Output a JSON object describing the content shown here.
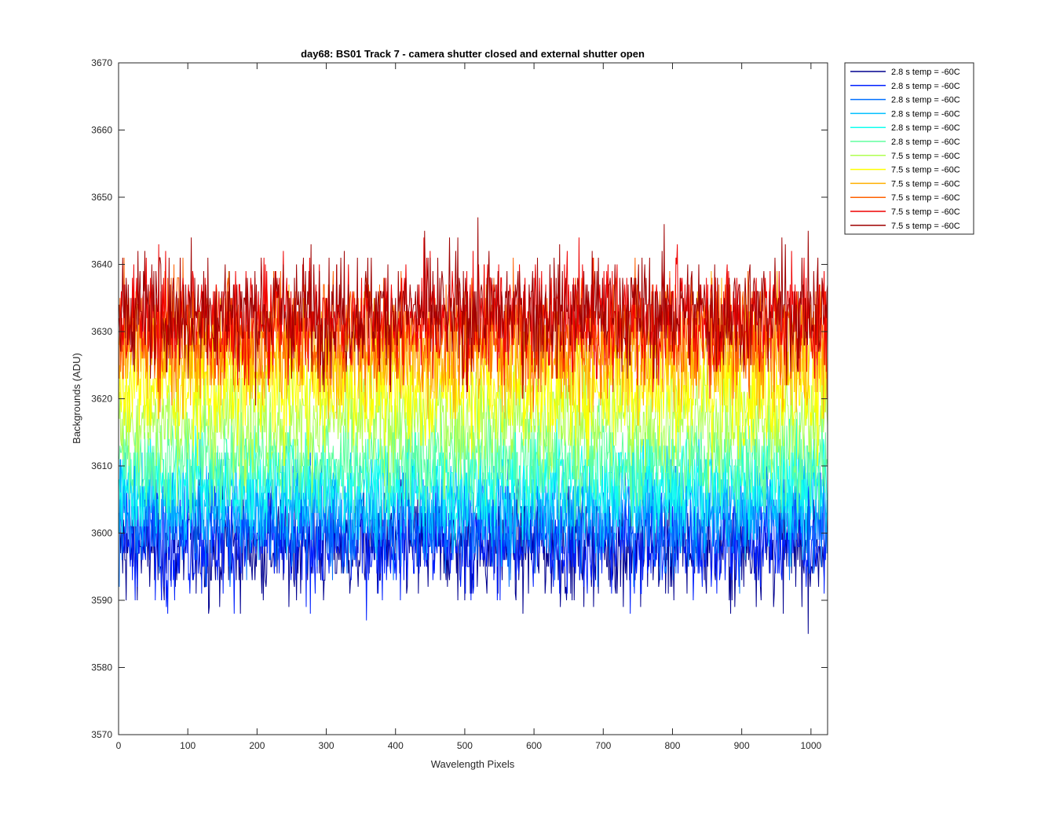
{
  "chart_data": {
    "type": "line",
    "title": "day68: BS01  Track 7 - camera shutter closed and external shutter open",
    "xlabel": "Wavelength Pixels",
    "ylabel": "Backgrounds (ADU)",
    "xlim": [
      0,
      1024
    ],
    "ylim": [
      3570,
      3670
    ],
    "xticks": [
      "0",
      "100",
      "200",
      "300",
      "400",
      "500",
      "600",
      "700",
      "800",
      "900",
      "1000"
    ],
    "yticks": [
      "3570",
      "3580",
      "3590",
      "3600",
      "3610",
      "3620",
      "3630",
      "3640",
      "3650",
      "3660",
      "3670"
    ],
    "grid": false,
    "legend_position": "outside-top-right",
    "x_range": [
      1,
      1024
    ],
    "series": [
      {
        "name": "2.8 s temp = -60C",
        "color": "#00008f",
        "mean": 3598,
        "spread": 6.5
      },
      {
        "name": "2.8 s temp = -60C",
        "color": "#0020ff",
        "mean": 3599,
        "spread": 6.5
      },
      {
        "name": "2.8 s temp = -60C",
        "color": "#0070ff",
        "mean": 3602,
        "spread": 6
      },
      {
        "name": "2.8 s temp = -60C",
        "color": "#00bfff",
        "mean": 3605,
        "spread": 6
      },
      {
        "name": "2.8 s temp = -60C",
        "color": "#10ffef",
        "mean": 3608,
        "spread": 6
      },
      {
        "name": "2.8 s temp = -60C",
        "color": "#60ff9f",
        "mean": 3611,
        "spread": 6
      },
      {
        "name": "7.5 s temp = -60C",
        "color": "#afff50",
        "mean": 3617,
        "spread": 6.5
      },
      {
        "name": "7.5 s temp = -60C",
        "color": "#ffff00",
        "mean": 3622,
        "spread": 7
      },
      {
        "name": "7.5 s temp = -60C",
        "color": "#ffaf00",
        "mean": 3627,
        "spread": 7
      },
      {
        "name": "7.5 s temp = -60C",
        "color": "#ff6000",
        "mean": 3630,
        "spread": 7
      },
      {
        "name": "7.5 s temp = -60C",
        "color": "#ef0000",
        "mean": 3632,
        "spread": 7
      },
      {
        "name": "7.5 s temp = -60C",
        "color": "#9f0000",
        "mean": 3633,
        "spread": 7
      }
    ]
  }
}
